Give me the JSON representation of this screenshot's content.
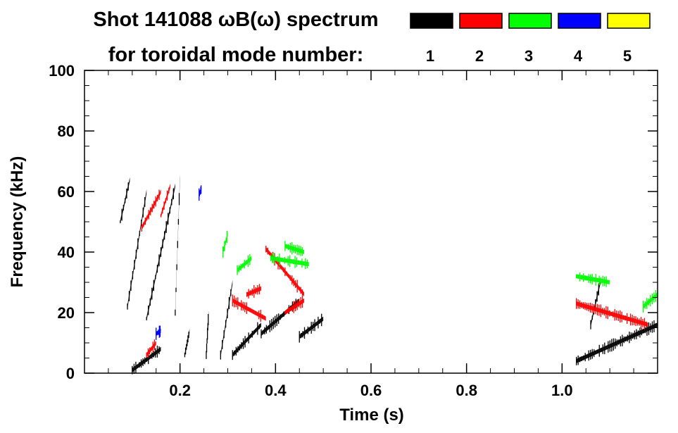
{
  "title": {
    "line1": "Shot 141088 ωB(ω) spectrum",
    "line2": "for toroidal mode number:"
  },
  "legend": [
    {
      "label": "1",
      "color": "#000000"
    },
    {
      "label": "2",
      "color": "#ff0000"
    },
    {
      "label": "3",
      "color": "#00ff00"
    },
    {
      "label": "4",
      "color": "#0000ff"
    },
    {
      "label": "5",
      "color": "#ffff00"
    }
  ],
  "chart_data": {
    "type": "scatter",
    "xlabel": "Time (s)",
    "ylabel": "Frequency (kHz)",
    "xlim": [
      0.0,
      1.2
    ],
    "ylim": [
      0,
      100
    ],
    "xticks": [
      "0.2",
      "0.4",
      "0.6",
      "0.8",
      "1.0"
    ],
    "xtick_values": [
      0.2,
      0.4,
      0.6,
      0.8,
      1.0
    ],
    "yticks": [
      "0",
      "20",
      "40",
      "60",
      "80",
      "100"
    ],
    "ytick_values": [
      0,
      20,
      40,
      60,
      80,
      100
    ],
    "grid": false,
    "legend_position": "top-right",
    "series": [
      {
        "name": "1",
        "color": "#000000",
        "segments": [
          {
            "t0": 0.075,
            "t1": 0.095,
            "f0": 50,
            "f1": 64
          },
          {
            "t0": 0.09,
            "t1": 0.13,
            "f0": 22,
            "f1": 60
          },
          {
            "t0": 0.13,
            "t1": 0.19,
            "f0": 18,
            "f1": 62
          },
          {
            "t0": 0.19,
            "t1": 0.2,
            "f0": 20,
            "f1": 65
          },
          {
            "t0": 0.1,
            "t1": 0.16,
            "f0": 1,
            "f1": 8
          },
          {
            "t0": 0.21,
            "t1": 0.22,
            "f0": 6,
            "f1": 14
          },
          {
            "t0": 0.255,
            "t1": 0.26,
            "f0": 6,
            "f1": 20
          },
          {
            "t0": 0.285,
            "t1": 0.31,
            "f0": 6,
            "f1": 30
          },
          {
            "t0": 0.31,
            "t1": 0.37,
            "f0": 6,
            "f1": 16
          },
          {
            "t0": 0.37,
            "t1": 0.45,
            "f0": 13,
            "f1": 24
          },
          {
            "t0": 0.45,
            "t1": 0.5,
            "f0": 12,
            "f1": 18
          },
          {
            "t0": 1.03,
            "t1": 1.2,
            "f0": 4,
            "f1": 16
          },
          {
            "t0": 1.06,
            "t1": 1.08,
            "f0": 16,
            "f1": 30
          }
        ]
      },
      {
        "name": "2",
        "color": "#ff0000",
        "segments": [
          {
            "t0": 0.12,
            "t1": 0.16,
            "f0": 48,
            "f1": 60
          },
          {
            "t0": 0.16,
            "t1": 0.18,
            "f0": 52,
            "f1": 62
          },
          {
            "t0": 0.13,
            "t1": 0.15,
            "f0": 6,
            "f1": 10
          },
          {
            "t0": 0.31,
            "t1": 0.38,
            "f0": 24,
            "f1": 18
          },
          {
            "t0": 0.34,
            "t1": 0.37,
            "f0": 26,
            "f1": 28
          },
          {
            "t0": 0.38,
            "t1": 0.46,
            "f0": 41,
            "f1": 26
          },
          {
            "t0": 0.42,
            "t1": 0.46,
            "f0": 20,
            "f1": 24
          },
          {
            "t0": 1.03,
            "t1": 1.18,
            "f0": 23,
            "f1": 16
          }
        ]
      },
      {
        "name": "3",
        "color": "#00ff00",
        "segments": [
          {
            "t0": 0.32,
            "t1": 0.35,
            "f0": 34,
            "f1": 38
          },
          {
            "t0": 0.39,
            "t1": 0.47,
            "f0": 38,
            "f1": 36
          },
          {
            "t0": 0.42,
            "t1": 0.46,
            "f0": 42,
            "f1": 40
          },
          {
            "t0": 1.03,
            "t1": 1.1,
            "f0": 32,
            "f1": 30
          },
          {
            "t0": 1.17,
            "t1": 1.2,
            "f0": 22,
            "f1": 26
          },
          {
            "t0": 0.29,
            "t1": 0.3,
            "f0": 40,
            "f1": 46
          }
        ]
      },
      {
        "name": "4",
        "color": "#0000ff",
        "segments": [
          {
            "t0": 0.15,
            "t1": 0.16,
            "f0": 13,
            "f1": 14
          },
          {
            "t0": 0.24,
            "t1": 0.245,
            "f0": 59,
            "f1": 61
          }
        ]
      },
      {
        "name": "5",
        "color": "#ffff00",
        "segments": []
      }
    ]
  }
}
